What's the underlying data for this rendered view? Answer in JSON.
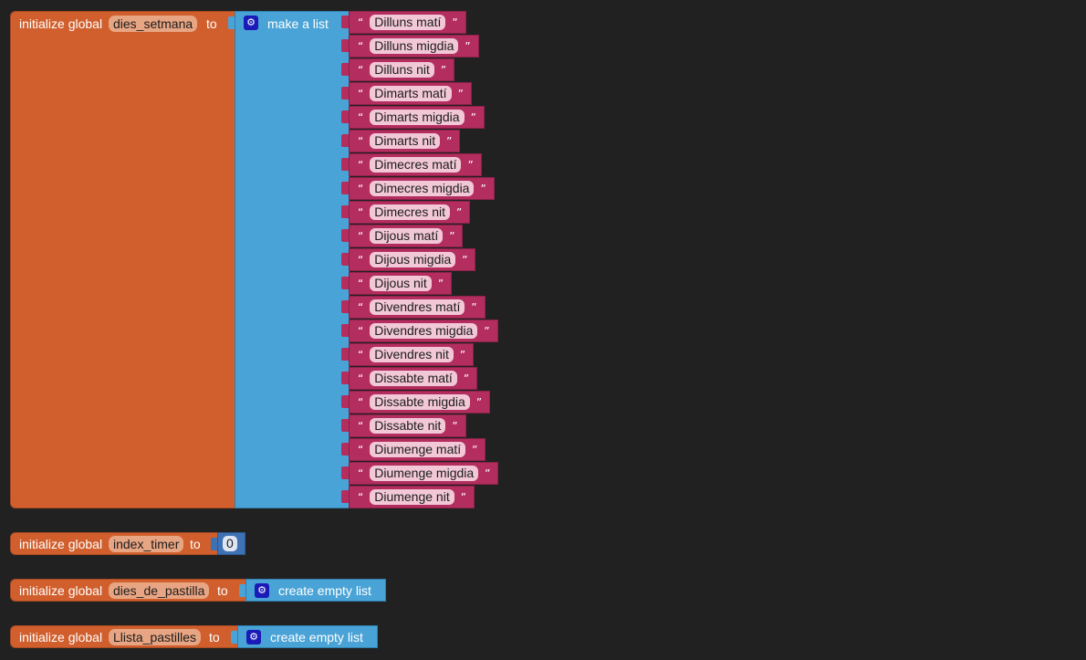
{
  "workspace": {
    "blocks": {
      "dies_setmana": {
        "prefix": "initialize global",
        "var_name": "dies_setmana",
        "to_label": "to",
        "list_label": "make a list",
        "items": [
          "Dilluns matí",
          "Dilluns migdia",
          "Dilluns nit",
          "Dimarts matí",
          "Dimarts migdia",
          "Dimarts nit",
          "Dimecres matí",
          "Dimecres migdia",
          "Dimecres nit",
          "Dijous matí",
          "Dijous migdia",
          "Dijous nit",
          "Divendres matí",
          "Divendres migdia",
          "Divendres nit",
          "Dissabte matí",
          "Dissabte migdia",
          "Dissabte nit",
          "Diumenge matí",
          "Diumenge migdia",
          "Diumenge nit"
        ]
      },
      "index_timer": {
        "prefix": "initialize global",
        "var_name": "index_timer",
        "to_label": "to",
        "value": "0"
      },
      "dies_de_pastilla": {
        "prefix": "initialize global",
        "var_name": "dies_de_pastilla",
        "to_label": "to",
        "list_label": "create empty list"
      },
      "llista_pastilles": {
        "prefix": "initialize global",
        "var_name": "Llista_pastilles",
        "to_label": "to",
        "list_label": "create empty list"
      }
    },
    "quote_open": "“",
    "quote_close": "”",
    "colors": {
      "background": "#212121",
      "variables_block": "#d05f2d",
      "lists_block": "#4aa3d6",
      "text_block": "#b32d5e",
      "math_block": "#3f71b5",
      "mutator_icon": "#1a1ab8"
    },
    "icons": {
      "mutator": "gear-icon"
    }
  }
}
